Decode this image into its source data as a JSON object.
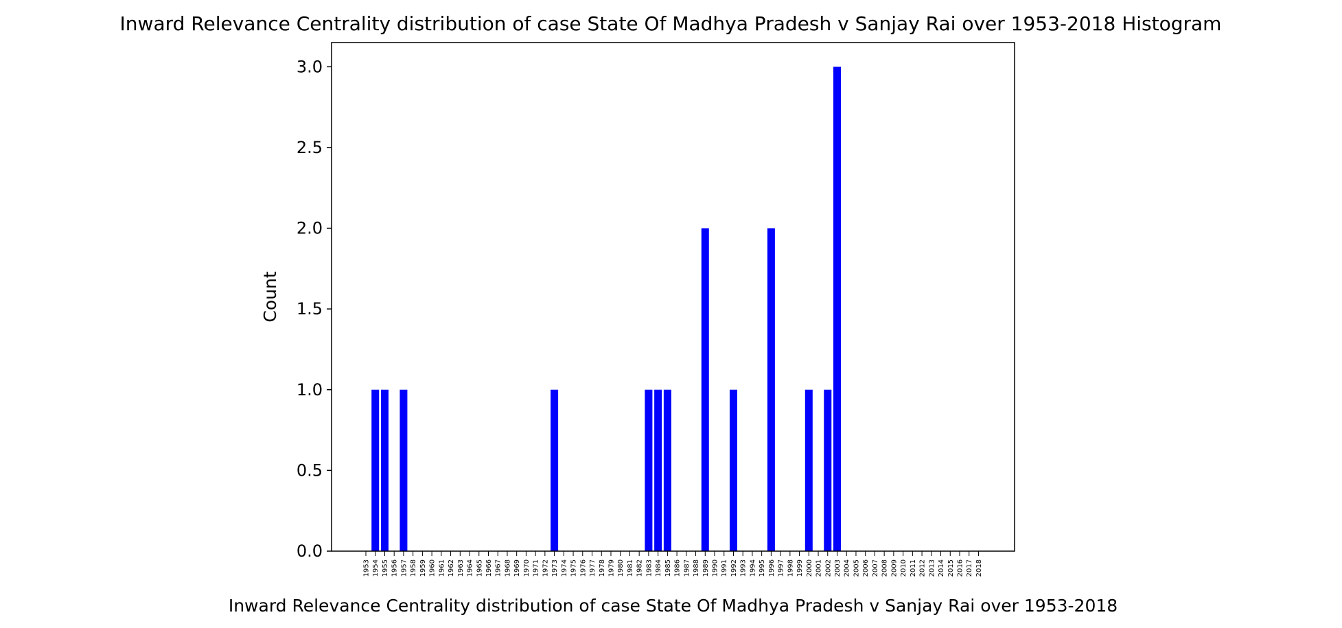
{
  "chart_data": {
    "type": "bar",
    "title": "Inward Relevance Centrality distribution of case State Of Madhya Pradesh v Sanjay Rai over 1953-2018 Histogram",
    "xlabel": "Inward Relevance Centrality distribution of case State Of Madhya Pradesh v Sanjay Rai over 1953-2018",
    "ylabel": "Count",
    "categories": [
      "1953",
      "1954",
      "1955",
      "1956",
      "1957",
      "1958",
      "1959",
      "1960",
      "1961",
      "1962",
      "1963",
      "1964",
      "1965",
      "1966",
      "1967",
      "1968",
      "1969",
      "1970",
      "1971",
      "1972",
      "1973",
      "1974",
      "1975",
      "1976",
      "1977",
      "1978",
      "1979",
      "1980",
      "1981",
      "1982",
      "1983",
      "1984",
      "1985",
      "1986",
      "1987",
      "1988",
      "1989",
      "1990",
      "1991",
      "1992",
      "1993",
      "1994",
      "1995",
      "1996",
      "1997",
      "1998",
      "1999",
      "2000",
      "2001",
      "2002",
      "2003",
      "2004",
      "2005",
      "2006",
      "2007",
      "2008",
      "2009",
      "2010",
      "2011",
      "2012",
      "2013",
      "2014",
      "2015",
      "2016",
      "2017",
      "2018"
    ],
    "values": [
      0,
      1,
      1,
      0,
      1,
      0,
      0,
      0,
      0,
      0,
      0,
      0,
      0,
      0,
      0,
      0,
      0,
      0,
      0,
      0,
      1,
      0,
      0,
      0,
      0,
      0,
      0,
      0,
      0,
      0,
      1,
      1,
      1,
      0,
      0,
      0,
      2,
      0,
      0,
      1,
      0,
      0,
      0,
      2,
      0,
      0,
      0,
      1,
      0,
      1,
      3,
      0,
      0,
      0,
      0,
      0,
      0,
      0,
      0,
      0,
      0,
      0,
      0,
      0,
      0,
      0
    ],
    "ylim": [
      0,
      3.15
    ],
    "yticks": [
      "0.0",
      "0.5",
      "1.0",
      "1.5",
      "2.0",
      "2.5",
      "3.0"
    ],
    "bar_color": "#0000ff",
    "grid": false
  }
}
